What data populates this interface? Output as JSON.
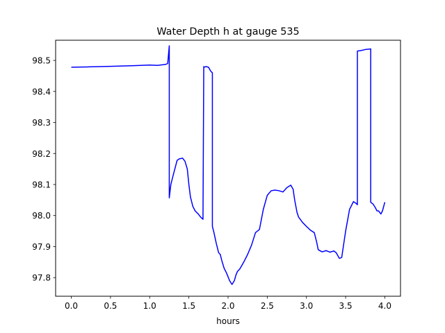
{
  "chart_data": {
    "type": "line",
    "title": "Water Depth h at gauge 535",
    "xlabel": "hours",
    "ylabel": "",
    "xlim": [
      -0.2,
      4.2
    ],
    "ylim": [
      97.74,
      98.565
    ],
    "xticks": [
      0.0,
      0.5,
      1.0,
      1.5,
      2.0,
      2.5,
      3.0,
      3.5,
      4.0
    ],
    "xtick_labels": [
      "0.0",
      "0.5",
      "1.0",
      "1.5",
      "2.0",
      "2.5",
      "3.0",
      "3.5",
      "4.0"
    ],
    "yticks": [
      97.8,
      97.9,
      98.0,
      98.1,
      98.2,
      98.3,
      98.4,
      98.5
    ],
    "ytick_labels": [
      "97.8",
      "97.9",
      "98.0",
      "98.1",
      "98.2",
      "98.3",
      "98.4",
      "98.5"
    ],
    "grid": false,
    "series": [
      {
        "color": "#0000ff",
        "x": [
          0.0,
          0.2,
          0.5,
          0.8,
          1.0,
          1.1,
          1.2,
          1.23,
          1.25,
          1.25,
          1.27,
          1.3,
          1.35,
          1.38,
          1.42,
          1.45,
          1.48,
          1.5,
          1.52,
          1.55,
          1.58,
          1.62,
          1.65,
          1.68,
          1.69,
          1.69,
          1.72,
          1.75,
          1.78,
          1.8,
          1.8,
          1.82,
          1.85,
          1.88,
          1.9,
          1.92,
          1.95,
          1.98,
          2.02,
          2.05,
          2.08,
          2.1,
          2.12,
          2.15,
          2.2,
          2.25,
          2.3,
          2.35,
          2.4,
          2.45,
          2.5,
          2.55,
          2.6,
          2.65,
          2.7,
          2.75,
          2.8,
          2.83,
          2.85,
          2.88,
          2.9,
          2.95,
          3.0,
          3.05,
          3.1,
          3.13,
          3.15,
          3.2,
          3.25,
          3.3,
          3.35,
          3.38,
          3.42,
          3.45,
          3.5,
          3.55,
          3.6,
          3.63,
          3.65,
          3.65,
          3.7,
          3.75,
          3.82,
          3.82,
          3.85,
          3.88,
          3.9,
          3.92,
          3.95,
          3.97,
          4.0
        ],
        "y": [
          98.478,
          98.479,
          98.481,
          98.483,
          98.485,
          98.484,
          98.487,
          98.49,
          98.547,
          98.057,
          98.1,
          98.13,
          98.178,
          98.183,
          98.185,
          98.175,
          98.15,
          98.1,
          98.06,
          98.03,
          98.015,
          98.005,
          97.995,
          97.988,
          98.48,
          98.478,
          98.48,
          98.478,
          98.465,
          98.46,
          97.965,
          97.945,
          97.91,
          97.88,
          97.875,
          97.855,
          97.83,
          97.815,
          97.79,
          97.778,
          97.79,
          97.808,
          97.82,
          97.828,
          97.85,
          97.875,
          97.905,
          97.945,
          97.955,
          98.02,
          98.065,
          98.08,
          98.082,
          98.08,
          98.076,
          98.09,
          98.098,
          98.085,
          98.05,
          98.01,
          97.995,
          97.978,
          97.965,
          97.953,
          97.945,
          97.915,
          97.89,
          97.883,
          97.887,
          97.882,
          97.886,
          97.88,
          97.862,
          97.865,
          97.95,
          98.02,
          98.045,
          98.04,
          98.035,
          98.53,
          98.532,
          98.535,
          98.537,
          98.043,
          98.037,
          98.025,
          98.015,
          98.015,
          98.005,
          98.015,
          98.043
        ]
      }
    ]
  }
}
